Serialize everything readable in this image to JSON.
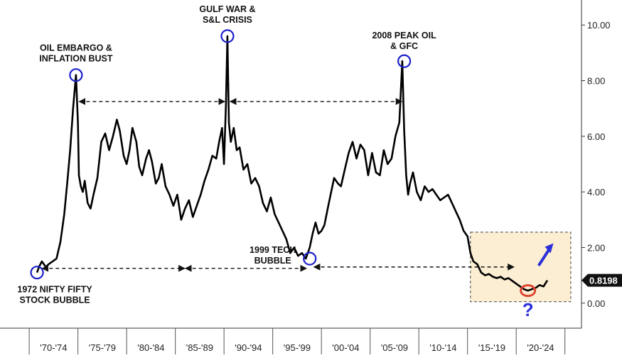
{
  "chart_data": {
    "type": "line",
    "title": "",
    "xlabel": "",
    "ylabel": "",
    "ylim": [
      -0.9,
      10.9
    ],
    "grid": false,
    "y_ticks": [
      "0.00",
      "2.00",
      "4.00",
      "6.00",
      "8.00",
      "10.00"
    ],
    "y_tick_values": [
      0,
      2,
      4,
      6,
      8,
      10
    ],
    "x_ticks": [
      "'70-'74",
      "'75-'79",
      "'80-'84",
      "'85-'89",
      "'90-'94",
      "'95-'99",
      "'00-'04",
      "'05-'09",
      "'10-'14",
      "'15-'19",
      "'20-'24"
    ],
    "last_value_label": "0.8198",
    "colors": {
      "line": "#000000",
      "circle": "#1c20c8",
      "arrow": "#2a2fd9",
      "highlight_fill": "#fbeed2",
      "red_circle": "#e04530",
      "last_value_bg": "#111111"
    },
    "series": [
      {
        "x": [
          1970.8,
          1971.0,
          1971.3,
          1971.7,
          1972.0,
          1972.4,
          1972.8,
          1973.2,
          1973.6,
          1973.9,
          1974.2,
          1974.5,
          1974.8,
          1975.0,
          1975.1,
          1975.3,
          1975.5,
          1975.7,
          1976.0,
          1976.3,
          1976.6,
          1977.0,
          1977.4,
          1977.8,
          1978.2,
          1978.6,
          1979.0,
          1979.3,
          1979.7,
          1980.0,
          1980.3,
          1980.6,
          1981.0,
          1981.3,
          1981.6,
          1982.0,
          1982.3,
          1982.6,
          1983.0,
          1983.3,
          1983.6,
          1984.0,
          1984.4,
          1984.8,
          1985.2,
          1985.6,
          1986.0,
          1986.4,
          1986.8,
          1987.2,
          1987.6,
          1988.0,
          1988.4,
          1988.8,
          1989.2,
          1989.5,
          1989.8,
          1990.0,
          1990.2,
          1990.35,
          1990.5,
          1990.7,
          1991.0,
          1991.3,
          1991.6,
          1992.0,
          1992.4,
          1992.8,
          1993.2,
          1993.6,
          1994.0,
          1994.4,
          1994.8,
          1995.2,
          1995.6,
          1996.0,
          1996.4,
          1996.8,
          1997.2,
          1997.6,
          1998.0,
          1998.4,
          1998.8,
          1999.1,
          1999.4,
          1999.7,
          2000.0,
          2000.3,
          2000.7,
          2001.0,
          2001.3,
          2001.7,
          2002.0,
          2002.4,
          2002.8,
          2003.2,
          2003.6,
          2004.0,
          2004.4,
          2004.8,
          2005.2,
          2005.6,
          2006.0,
          2006.4,
          2006.8,
          2007.2,
          2007.6,
          2008.0,
          2008.3,
          2008.5,
          2008.7,
          2008.9,
          2009.1,
          2009.4,
          2009.8,
          2010.2,
          2010.6,
          2011.0,
          2011.4,
          2011.8,
          2012.2,
          2012.6,
          2013.0,
          2013.4,
          2013.8,
          2014.2,
          2014.6,
          2015.0,
          2015.3,
          2015.6,
          2016.0,
          2016.4,
          2016.8,
          2017.2,
          2017.6,
          2018.0,
          2018.4,
          2018.8,
          2019.2,
          2019.6,
          2020.0,
          2020.4,
          2020.8,
          2021.2,
          2021.6,
          2022.0,
          2022.4,
          2022.8,
          2023.2
        ],
        "y": [
          1.1,
          1.3,
          1.5,
          1.3,
          1.4,
          1.5,
          1.6,
          2.2,
          3.2,
          4.3,
          5.5,
          7.0,
          8.2,
          6.5,
          4.6,
          4.2,
          4.0,
          4.4,
          3.6,
          3.4,
          3.9,
          4.5,
          5.8,
          6.1,
          5.5,
          6.0,
          6.6,
          6.2,
          5.3,
          5.0,
          5.5,
          6.3,
          5.8,
          4.9,
          4.6,
          5.2,
          5.5,
          5.1,
          4.3,
          4.5,
          5.0,
          4.2,
          3.9,
          3.5,
          3.9,
          3.0,
          3.4,
          3.7,
          3.1,
          3.5,
          3.9,
          4.4,
          4.8,
          5.3,
          5.2,
          5.8,
          6.3,
          5.0,
          7.2,
          9.6,
          6.5,
          5.8,
          6.3,
          5.5,
          5.6,
          4.8,
          5.0,
          4.3,
          4.5,
          4.2,
          3.6,
          3.3,
          3.8,
          3.2,
          2.9,
          2.6,
          2.3,
          1.8,
          2.0,
          1.7,
          1.8,
          1.6,
          2.0,
          2.5,
          2.9,
          2.5,
          2.6,
          2.8,
          3.5,
          4.0,
          4.5,
          4.3,
          4.2,
          4.8,
          5.4,
          5.8,
          5.2,
          5.7,
          5.5,
          4.6,
          5.4,
          4.7,
          4.6,
          5.5,
          5.0,
          5.2,
          6.0,
          6.5,
          8.7,
          6.2,
          4.6,
          3.9,
          4.3,
          4.7,
          4.0,
          3.7,
          4.2,
          4.0,
          4.1,
          3.9,
          3.7,
          3.8,
          3.9,
          3.6,
          3.3,
          3.0,
          2.6,
          2.4,
          1.8,
          1.5,
          1.4,
          1.1,
          1.0,
          1.05,
          0.95,
          0.9,
          0.95,
          0.85,
          0.9,
          0.8,
          0.7,
          0.6,
          0.5,
          0.45,
          0.5,
          0.55,
          0.65,
          0.6,
          0.82
        ]
      }
    ],
    "annotations": [
      {
        "lines": [
          "OIL EMBARGO &",
          "INFLATION BUST"
        ],
        "x": 1974.8,
        "y": 8.2
      },
      {
        "lines": [
          "GULF WAR &",
          "S&L CRISIS"
        ],
        "x": 1990.35,
        "y": 9.6
      },
      {
        "lines": [
          "2008 PEAK OIL",
          "& GFC"
        ],
        "x": 2008.5,
        "y": 8.7
      },
      {
        "lines": [
          "1972 NIFTY FIFTY",
          "STOCK BUBBLE"
        ],
        "x": 1970.8,
        "y": 1.1
      },
      {
        "lines": [
          "1999 TECH",
          "BUBBLE"
        ],
        "x": 1998.8,
        "y": 1.6
      }
    ],
    "question_mark": "?"
  }
}
